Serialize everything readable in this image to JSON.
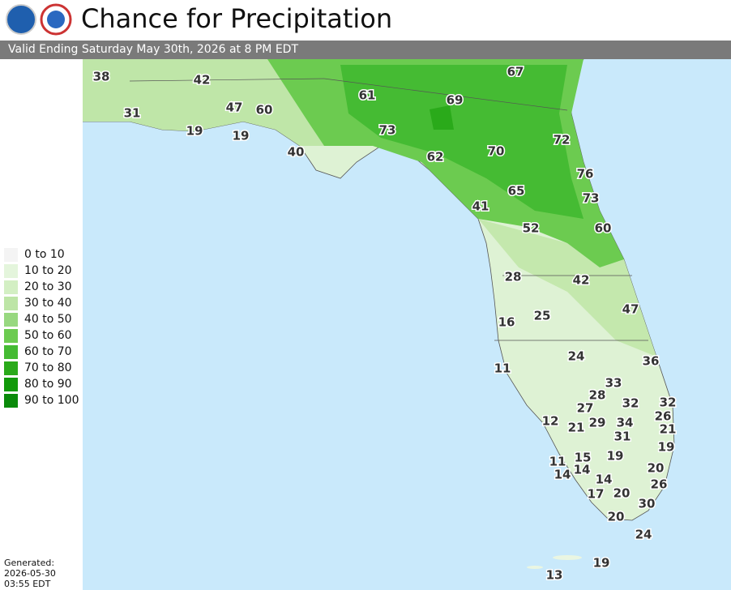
{
  "header": {
    "title": "Chance for Precipitation",
    "subtitle": "Valid Ending Saturday May 30th, 2026 at 8 PM EDT"
  },
  "legend": [
    {
      "label": "0 to 10",
      "color": "#f4f4f4"
    },
    {
      "label": "10 to 20",
      "color": "#e4f5dc"
    },
    {
      "label": "20 to 30",
      "color": "#d3efc3"
    },
    {
      "label": "30 to 40",
      "color": "#bde5a6"
    },
    {
      "label": "40 to 50",
      "color": "#98d880"
    },
    {
      "label": "50 to 60",
      "color": "#6ccb50"
    },
    {
      "label": "60 to 70",
      "color": "#45bb33"
    },
    {
      "label": "70 to 80",
      "color": "#2aaa1a"
    },
    {
      "label": "80 to 90",
      "color": "#129a0a"
    },
    {
      "label": "90 to 100",
      "color": "#0a8a0a"
    }
  ],
  "footer": {
    "label": "Generated:",
    "date": "2026-05-30",
    "time": "03:55 EDT"
  },
  "map_labels": [
    38,
    42,
    31,
    47,
    60,
    19,
    19,
    40,
    61,
    69,
    67,
    73,
    62,
    70,
    72,
    76,
    65,
    73,
    41,
    52,
    60,
    28,
    42,
    47,
    25,
    16,
    24,
    36,
    11,
    33,
    28,
    32,
    32,
    27,
    26,
    12,
    21,
    29,
    34,
    21,
    31,
    19,
    19,
    15,
    11,
    14,
    14,
    20,
    14,
    26,
    17,
    20,
    30,
    20,
    24,
    19,
    13
  ]
}
